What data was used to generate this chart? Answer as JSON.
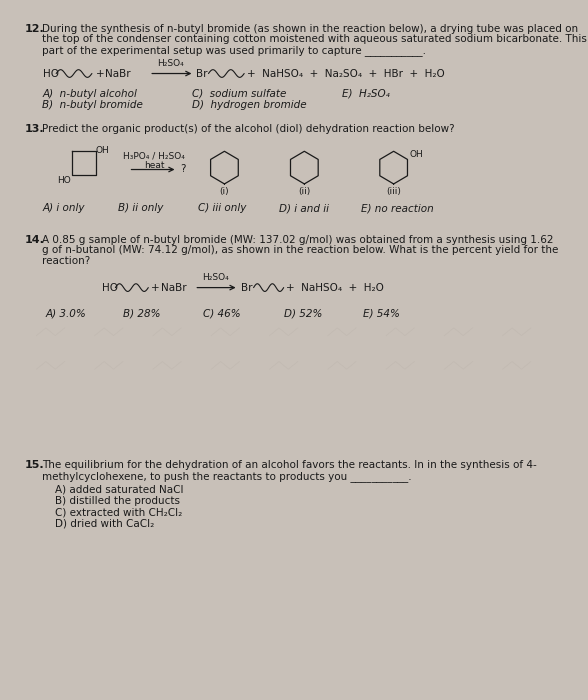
{
  "bg_color": "#c8c0b8",
  "paper_color": "#eeebe6",
  "text_color": "#1a1a1a",
  "fs": 7.5,
  "fs_bold": 8.0,
  "q12": {
    "number": "12.",
    "lines": [
      "During the synthesis of n-butyl bromide (as shown in the reaction below), a drying tube was placed on",
      "the top of the condenser containing cotton moistened with aqueous saturated sodium bicarbonate. This",
      "part of the experimental setup was used primarily to capture ___________."
    ],
    "ans_col1": [
      "A)  n-butyl alcohol",
      "B)  n-butyl bromide"
    ],
    "ans_col2": [
      "C)  sodium sulfate",
      "D)  hydrogen bromide"
    ],
    "ans_col3": [
      "E)  H₂SO₄"
    ]
  },
  "q13": {
    "number": "13.",
    "text": "Predict the organic product(s) of the alcohol (diol) dehydration reaction below?",
    "answers": [
      "A) i only",
      "B) ii only",
      "C) iii only",
      "D) i and ii",
      "E) no reaction"
    ]
  },
  "q14": {
    "number": "14.",
    "lines": [
      "A 0.85 g sample of n-butyl bromide (MW: 137.02 g/mol) was obtained from a synthesis using 1.62",
      "g of n-butanol (MW: 74.12 g/mol), as shown in the reaction below. What is the percent yield for the",
      "reaction?"
    ],
    "answers": [
      "A) 3.0%",
      "B) 28%",
      "C) 46%",
      "D) 52%",
      "E) 54%"
    ]
  },
  "q15": {
    "number": "15.",
    "lines": [
      "The equilibrium for the dehydration of an alcohol favors the reactants. In in the synthesis of 4-",
      "methylcyclohexene, to push the reactants to products you ___________."
    ],
    "answers": [
      "A) added saturated NaCl",
      "B) distilled the products",
      "C) extracted with CH₂Cl₂",
      "D) dried with CaCl₂"
    ]
  }
}
